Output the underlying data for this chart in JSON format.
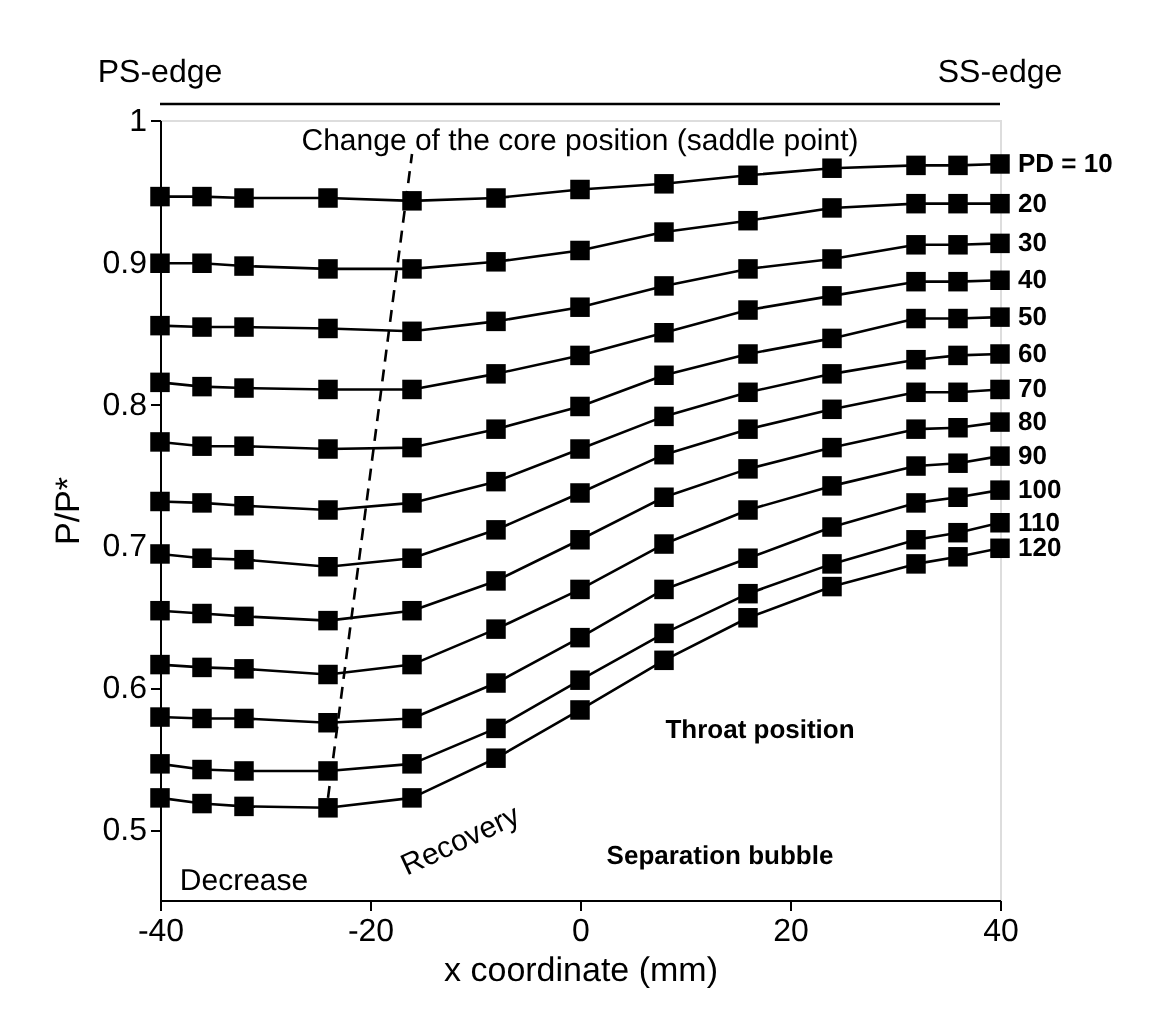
{
  "chart_data": {
    "type": "line",
    "xlabel": "x coordinate (mm)",
    "ylabel": "P/P*",
    "x": [
      -40,
      -36,
      -32,
      -24,
      -16,
      -8,
      0,
      8,
      16,
      24,
      32,
      36,
      40
    ],
    "xlim": [
      -40,
      40
    ],
    "xticks": [
      -40,
      -20,
      0,
      20,
      40
    ],
    "ylim": [
      0.45,
      1
    ],
    "yticks": [
      0.5,
      0.6,
      0.7,
      0.8,
      0.9,
      1
    ],
    "grid": false,
    "marker": "square",
    "line_style": "solid",
    "series": [
      {
        "name": "PD = 10",
        "color": "#000000",
        "values": [
          0.946,
          0.946,
          0.945,
          0.945,
          0.943,
          0.945,
          0.951,
          0.955,
          0.961,
          0.966,
          0.968,
          0.968,
          0.969
        ]
      },
      {
        "name": "20",
        "color": "#000000",
        "values": [
          0.899,
          0.899,
          0.897,
          0.895,
          0.895,
          0.9,
          0.908,
          0.921,
          0.929,
          0.938,
          0.941,
          0.941,
          0.941
        ]
      },
      {
        "name": "30",
        "color": "#000000",
        "values": [
          0.855,
          0.854,
          0.854,
          0.853,
          0.851,
          0.858,
          0.868,
          0.883,
          0.895,
          0.902,
          0.912,
          0.912,
          0.913
        ]
      },
      {
        "name": "40",
        "color": "#000000",
        "values": [
          0.815,
          0.812,
          0.811,
          0.81,
          0.81,
          0.821,
          0.834,
          0.85,
          0.866,
          0.876,
          0.886,
          0.886,
          0.887
        ]
      },
      {
        "name": "50",
        "color": "#000000",
        "values": [
          0.773,
          0.77,
          0.77,
          0.768,
          0.769,
          0.782,
          0.798,
          0.82,
          0.835,
          0.846,
          0.86,
          0.86,
          0.861
        ]
      },
      {
        "name": "60",
        "color": "#000000",
        "values": [
          0.731,
          0.73,
          0.728,
          0.725,
          0.73,
          0.745,
          0.768,
          0.791,
          0.808,
          0.821,
          0.831,
          0.834,
          0.835
        ]
      },
      {
        "name": "70",
        "color": "#000000",
        "values": [
          0.694,
          0.691,
          0.69,
          0.685,
          0.691,
          0.711,
          0.737,
          0.764,
          0.782,
          0.796,
          0.808,
          0.808,
          0.81
        ]
      },
      {
        "name": "80",
        "color": "#000000",
        "values": [
          0.654,
          0.652,
          0.65,
          0.647,
          0.654,
          0.675,
          0.704,
          0.734,
          0.754,
          0.769,
          0.782,
          0.783,
          0.787
        ]
      },
      {
        "name": "90",
        "color": "#000000",
        "values": [
          0.616,
          0.614,
          0.613,
          0.609,
          0.616,
          0.641,
          0.669,
          0.701,
          0.725,
          0.742,
          0.756,
          0.758,
          0.763
        ]
      },
      {
        "name": "100",
        "color": "#000000",
        "values": [
          0.579,
          0.578,
          0.578,
          0.575,
          0.578,
          0.603,
          0.635,
          0.669,
          0.691,
          0.713,
          0.73,
          0.734,
          0.739
        ]
      },
      {
        "name": "110",
        "color": "#000000",
        "values": [
          0.546,
          0.542,
          0.541,
          0.541,
          0.546,
          0.571,
          0.605,
          0.638,
          0.666,
          0.687,
          0.704,
          0.709,
          0.716
        ]
      },
      {
        "name": "120",
        "color": "#000000",
        "values": [
          0.522,
          0.518,
          0.516,
          0.515,
          0.522,
          0.55,
          0.584,
          0.619,
          0.649,
          0.671,
          0.687,
          0.692,
          0.698
        ]
      },
      {
        "type": "line",
        "color": "#000000",
        "line_style": "dashed",
        "marker": "none",
        "x": [
          -24,
          -16
        ],
        "values": [
          0.522,
          0.976
        ]
      }
    ],
    "annotations": [
      "PS-edge",
      "SS-edge",
      "Change of the core position (saddle point)",
      "Decrease",
      "Recovery",
      "Throat position",
      "Separation bubble"
    ]
  }
}
